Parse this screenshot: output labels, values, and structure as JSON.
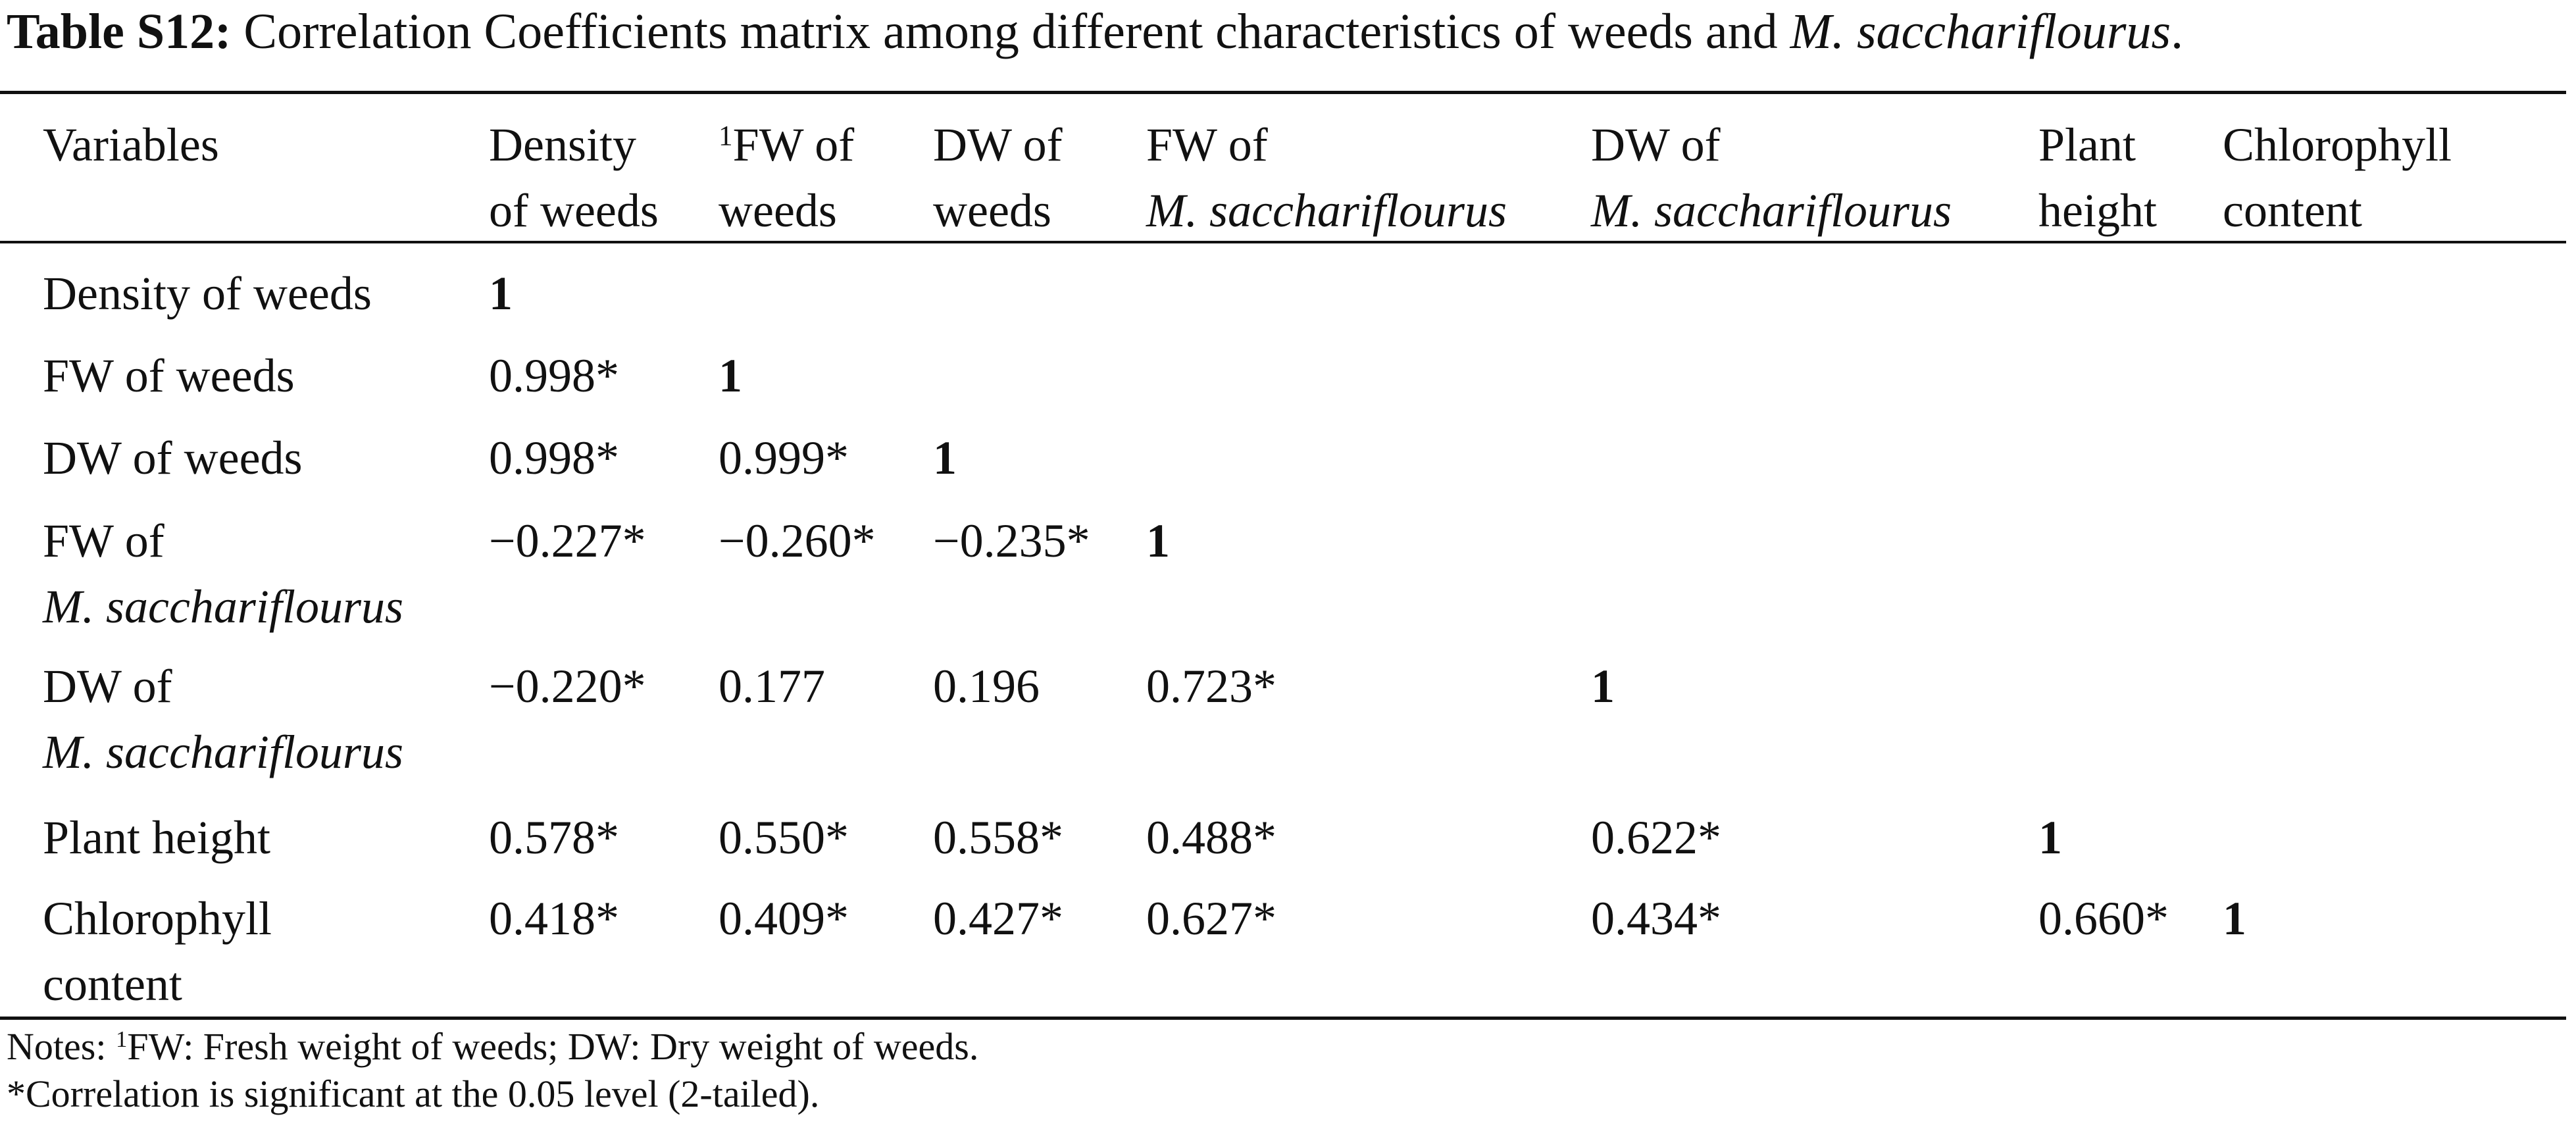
{
  "title": {
    "label": "Table S12:",
    "text": " Correlation Coefficients matrix among different characteristics of weeds and ",
    "species": "M. sacchariflourus",
    "end": "."
  },
  "headers": {
    "variables": "Variables",
    "density_line1": "Density",
    "density_line2": "of weeds",
    "fw_weeds_sup": "1",
    "fw_weeds_line1": "FW of",
    "fw_weeds_line2": "weeds",
    "dw_weeds_line1": "DW of",
    "dw_weeds_line2": "weeds",
    "fw_ms_line1": "FW of",
    "fw_ms_line2": "M. sacchariflourus",
    "dw_ms_line1": "DW of",
    "dw_ms_line2": "M. sacchariflourus",
    "height_line1": "Plant",
    "height_line2": "height",
    "chl_line1": "Chlorophyll",
    "chl_line2": "content"
  },
  "rows": [
    {
      "label1": "Density of weeds",
      "label2": "",
      "values": [
        "1"
      ]
    },
    {
      "label1": "FW of weeds",
      "label2": "",
      "values": [
        "0.998*",
        "1"
      ]
    },
    {
      "label1": "DW of weeds",
      "label2": "",
      "values": [
        "0.998*",
        "0.999*",
        "1"
      ]
    },
    {
      "label1": "FW of",
      "label2": "M. sacchariflourus",
      "values": [
        "−0.227*",
        "−0.260*",
        "−0.235*",
        "1"
      ]
    },
    {
      "label1": "DW of",
      "label2": "M. sacchariflourus",
      "values": [
        "−0.220*",
        "0.177",
        "0.196",
        "0.723*",
        "1"
      ]
    },
    {
      "label1": "Plant height",
      "label2": "",
      "values": [
        "0.578*",
        "0.550*",
        "0.558*",
        "0.488*",
        "0.622*",
        "1"
      ]
    },
    {
      "label1": "Chlorophyll",
      "label2": "content",
      "values": [
        "0.418*",
        "0.409*",
        "0.427*",
        "0.627*",
        "0.434*",
        "0.660*",
        "1"
      ]
    }
  ],
  "notes": {
    "line1_prefix": "Notes: ",
    "line1_sup": "1",
    "line1_text": "FW: Fresh weight of weeds; DW: Dry weight of weeds.",
    "line2": "*Correlation is significant at the 0.05 level (2-tailed)."
  }
}
